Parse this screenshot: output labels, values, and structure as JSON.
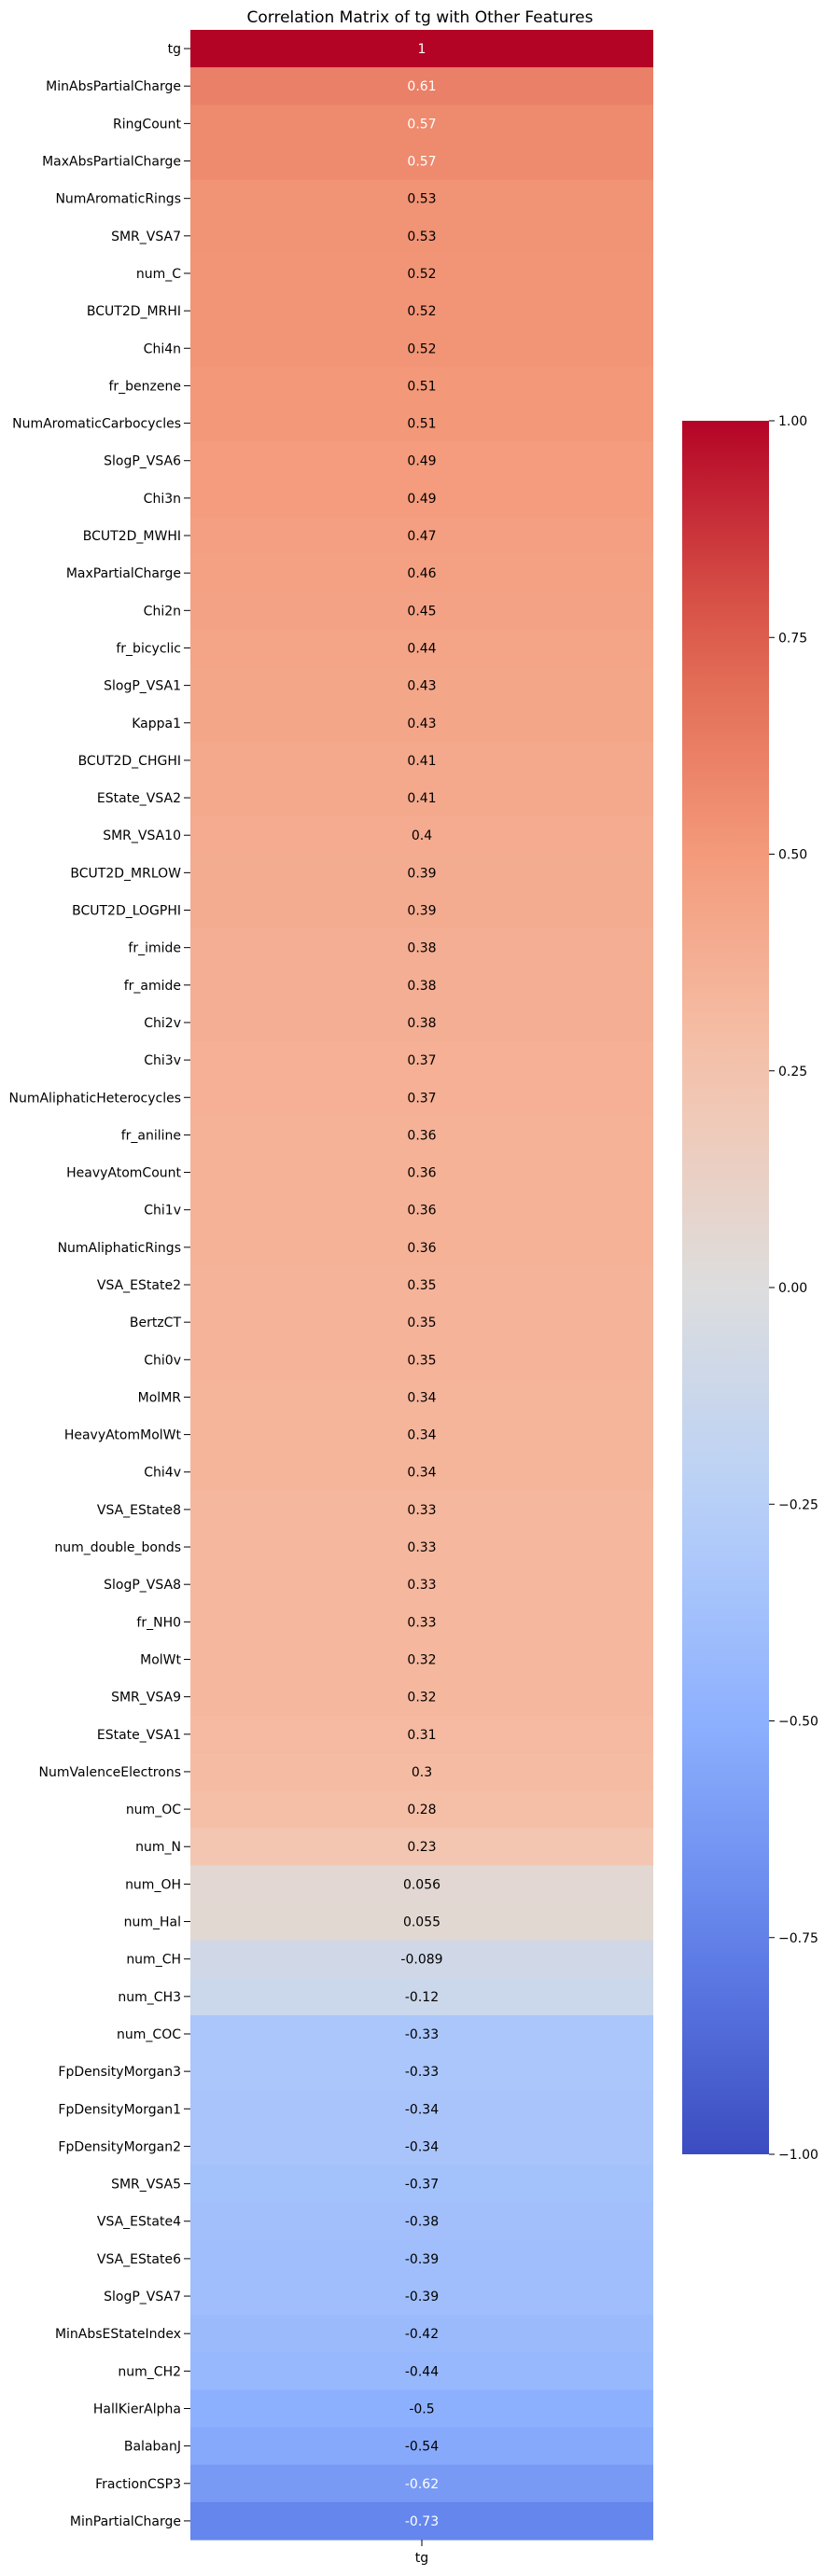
{
  "chart_data": {
    "type": "heatmap",
    "title": "Correlation Matrix of tg with Other Features",
    "xlabel": "",
    "ylabel": "",
    "columns": [
      "tg"
    ],
    "rows": [
      "tg",
      "MinAbsPartialCharge",
      "RingCount",
      "MaxAbsPartialCharge",
      "NumAromaticRings",
      "SMR_VSA7",
      "num_C",
      "BCUT2D_MRHI",
      "Chi4n",
      "fr_benzene",
      "NumAromaticCarbocycles",
      "SlogP_VSA6",
      "Chi3n",
      "BCUT2D_MWHI",
      "MaxPartialCharge",
      "Chi2n",
      "fr_bicyclic",
      "SlogP_VSA1",
      "Kappa1",
      "BCUT2D_CHGHI",
      "EState_VSA2",
      "SMR_VSA10",
      "BCUT2D_MRLOW",
      "BCUT2D_LOGPHI",
      "fr_imide",
      "fr_amide",
      "Chi2v",
      "Chi3v",
      "NumAliphaticHeterocycles",
      "fr_aniline",
      "HeavyAtomCount",
      "Chi1v",
      "NumAliphaticRings",
      "VSA_EState2",
      "BertzCT",
      "Chi0v",
      "MolMR",
      "HeavyAtomMolWt",
      "Chi4v",
      "VSA_EState8",
      "num_double_bonds",
      "SlogP_VSA8",
      "fr_NH0",
      "MolWt",
      "SMR_VSA9",
      "EState_VSA1",
      "NumValenceElectrons",
      "num_OC",
      "num_N",
      "num_OH",
      "num_Hal",
      "num_CH",
      "num_CH3",
      "num_COC",
      "FpDensityMorgan3",
      "FpDensityMorgan1",
      "FpDensityMorgan2",
      "SMR_VSA5",
      "VSA_EState4",
      "VSA_EState6",
      "SlogP_VSA7",
      "MinAbsEStateIndex",
      "num_CH2",
      "HallKierAlpha",
      "BalabanJ",
      "FractionCSP3",
      "MinPartialCharge"
    ],
    "values": [
      1,
      0.61,
      0.57,
      0.57,
      0.53,
      0.53,
      0.52,
      0.52,
      0.52,
      0.51,
      0.51,
      0.49,
      0.49,
      0.47,
      0.46,
      0.45,
      0.44,
      0.43,
      0.43,
      0.41,
      0.41,
      0.4,
      0.39,
      0.39,
      0.38,
      0.38,
      0.38,
      0.37,
      0.37,
      0.36,
      0.36,
      0.36,
      0.36,
      0.35,
      0.35,
      0.35,
      0.34,
      0.34,
      0.34,
      0.33,
      0.33,
      0.33,
      0.33,
      0.32,
      0.32,
      0.31,
      0.3,
      0.28,
      0.23,
      0.056,
      0.055,
      -0.089,
      -0.12,
      -0.33,
      -0.33,
      -0.34,
      -0.34,
      -0.37,
      -0.38,
      -0.39,
      -0.39,
      -0.42,
      -0.44,
      -0.5,
      -0.54,
      -0.62,
      -0.73
    ],
    "value_labels": [
      "1",
      "0.61",
      "0.57",
      "0.57",
      "0.53",
      "0.53",
      "0.52",
      "0.52",
      "0.52",
      "0.51",
      "0.51",
      "0.49",
      "0.49",
      "0.47",
      "0.46",
      "0.45",
      "0.44",
      "0.43",
      "0.43",
      "0.41",
      "0.41",
      "0.4",
      "0.39",
      "0.39",
      "0.38",
      "0.38",
      "0.38",
      "0.37",
      "0.37",
      "0.36",
      "0.36",
      "0.36",
      "0.36",
      "0.35",
      "0.35",
      "0.35",
      "0.34",
      "0.34",
      "0.34",
      "0.33",
      "0.33",
      "0.33",
      "0.33",
      "0.32",
      "0.32",
      "0.31",
      "0.3",
      "0.28",
      "0.23",
      "0.056",
      "0.055",
      "-0.089",
      "-0.12",
      "-0.33",
      "-0.33",
      "-0.34",
      "-0.34",
      "-0.37",
      "-0.38",
      "-0.39",
      "-0.39",
      "-0.42",
      "-0.44",
      "-0.5",
      "-0.54",
      "-0.62",
      "-0.73"
    ],
    "colormap": "coolwarm",
    "vmin": -1,
    "vmax": 1,
    "colorbar_ticks": [
      1,
      0.75,
      0.5,
      0.25,
      0,
      -0.25,
      -0.5,
      -0.75,
      -1
    ],
    "colorbar_tick_labels": [
      "1.00",
      "0.75",
      "0.50",
      "0.25",
      "0.00",
      "−0.25",
      "−0.50",
      "−0.75",
      "−1.00"
    ],
    "grid": false,
    "legend": "colorbar-right"
  }
}
